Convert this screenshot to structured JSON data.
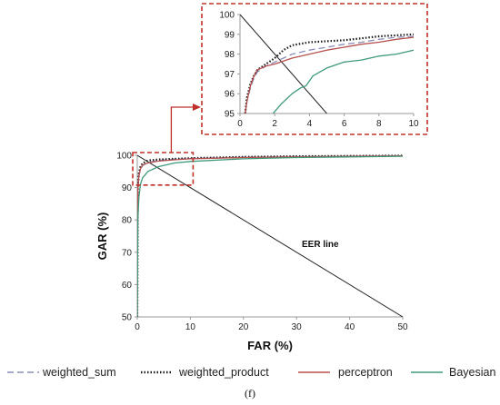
{
  "colors": {
    "weighted_sum": "#8a8fb8",
    "weighted_product": "#1a1a1a",
    "perceptron": "#b5514f",
    "bayesian": "#3f9a7a",
    "eer_line": "#222222",
    "highlight": "#c0302a",
    "axis": "#9a9a9a"
  },
  "chart_data": [
    {
      "type": "line",
      "xlabel": "FAR (%)",
      "ylabel": "GAR (%)",
      "xlim": [
        0,
        50
      ],
      "ylim": [
        50,
        100
      ],
      "x_ticks": [
        "0",
        "10",
        "20",
        "30",
        "40",
        "50"
      ],
      "y_ticks": [
        "50",
        "60",
        "70",
        "80",
        "90",
        "100"
      ],
      "series": [
        {
          "name": "weighted_sum",
          "style": "dashed",
          "x": [
            0,
            0.1,
            0.3,
            0.6,
            1,
            2,
            4,
            7,
            10,
            20,
            30,
            50
          ],
          "y": [
            50,
            89,
            93.5,
            95.5,
            96.8,
            97.8,
            98.4,
            98.8,
            99,
            99.4,
            99.6,
            99.8
          ]
        },
        {
          "name": "weighted_product",
          "style": "dotted",
          "x": [
            0,
            0.1,
            0.3,
            0.6,
            1,
            2,
            4,
            7,
            10,
            20,
            30,
            50
          ],
          "y": [
            50,
            90,
            94.5,
            96.5,
            97.5,
            98.4,
            98.7,
            98.9,
            99.1,
            99.5,
            99.7,
            99.9
          ]
        },
        {
          "name": "perceptron",
          "style": "solid",
          "x": [
            0,
            0.1,
            0.3,
            0.6,
            1,
            2,
            4,
            7,
            10,
            20,
            30,
            50
          ],
          "y": [
            50,
            89,
            93.8,
            95.8,
            97,
            97.6,
            98.2,
            98.6,
            98.9,
            99.3,
            99.5,
            99.8
          ]
        },
        {
          "name": "Bayesian",
          "style": "solid",
          "x": [
            0,
            0.1,
            0.3,
            0.6,
            1,
            2,
            4,
            7,
            10,
            20,
            30,
            50
          ],
          "y": [
            50,
            80,
            87,
            91,
            93,
            95,
            96.5,
            97.6,
            98.1,
            98.9,
            99.3,
            99.7
          ]
        }
      ],
      "reference_line": {
        "label": "EER line",
        "x": [
          0,
          50
        ],
        "y": [
          100,
          50
        ]
      },
      "zoom_region": {
        "x": [
          0,
          10
        ],
        "y": [
          95,
          100
        ]
      }
    },
    {
      "type": "line",
      "xlim": [
        0,
        10
      ],
      "ylim": [
        95,
        100
      ],
      "x_ticks": [
        "0",
        "2",
        "4",
        "6",
        "8",
        "10"
      ],
      "y_ticks": [
        "95",
        "96",
        "97",
        "98",
        "99",
        "100"
      ],
      "series": [
        {
          "name": "weighted_sum",
          "style": "dashed",
          "x": [
            0.3,
            0.4,
            0.6,
            0.8,
            1,
            1.5,
            2,
            2.5,
            3,
            4,
            5,
            6,
            7,
            8,
            9,
            10
          ],
          "y": [
            95,
            95.6,
            96.3,
            96.8,
            97.1,
            97.4,
            97.6,
            97.8,
            98.0,
            98.2,
            98.35,
            98.5,
            98.6,
            98.75,
            98.85,
            98.9
          ]
        },
        {
          "name": "weighted_product",
          "style": "dotted",
          "x": [
            0.3,
            0.4,
            0.6,
            0.8,
            1,
            1.5,
            2,
            2.5,
            3,
            4,
            5,
            6,
            7,
            8,
            9,
            10
          ],
          "y": [
            95,
            95.8,
            96.5,
            96.9,
            97.2,
            97.5,
            97.8,
            98.2,
            98.45,
            98.6,
            98.65,
            98.7,
            98.8,
            98.9,
            98.95,
            99.0
          ]
        },
        {
          "name": "perceptron",
          "style": "solid",
          "x": [
            0.3,
            0.4,
            0.6,
            0.8,
            1,
            1.5,
            2,
            2.5,
            3,
            4,
            5,
            6,
            7,
            8,
            9,
            10
          ],
          "y": [
            95,
            95.6,
            96.4,
            96.9,
            97.2,
            97.4,
            97.5,
            97.65,
            97.8,
            98.0,
            98.2,
            98.35,
            98.5,
            98.6,
            98.75,
            98.85
          ]
        },
        {
          "name": "Bayesian",
          "style": "solid",
          "x": [
            1.9,
            2,
            2.4,
            3,
            3.5,
            3.8,
            4.2,
            5,
            6,
            7,
            8,
            9,
            10
          ],
          "y": [
            95,
            95.1,
            95.5,
            96.0,
            96.3,
            96.4,
            96.9,
            97.3,
            97.6,
            97.7,
            97.9,
            98.0,
            98.2
          ]
        }
      ],
      "reference_line": {
        "x": [
          0,
          5
        ],
        "y": [
          100,
          95
        ]
      }
    }
  ],
  "legend": {
    "items": [
      {
        "label": "weighted_sum",
        "style": "dashed"
      },
      {
        "label": "weighted_product",
        "style": "dotted"
      },
      {
        "label": "perceptron",
        "style": "solid"
      },
      {
        "label": "Bayesian",
        "style": "solid"
      }
    ]
  },
  "figure_label": "(f)"
}
